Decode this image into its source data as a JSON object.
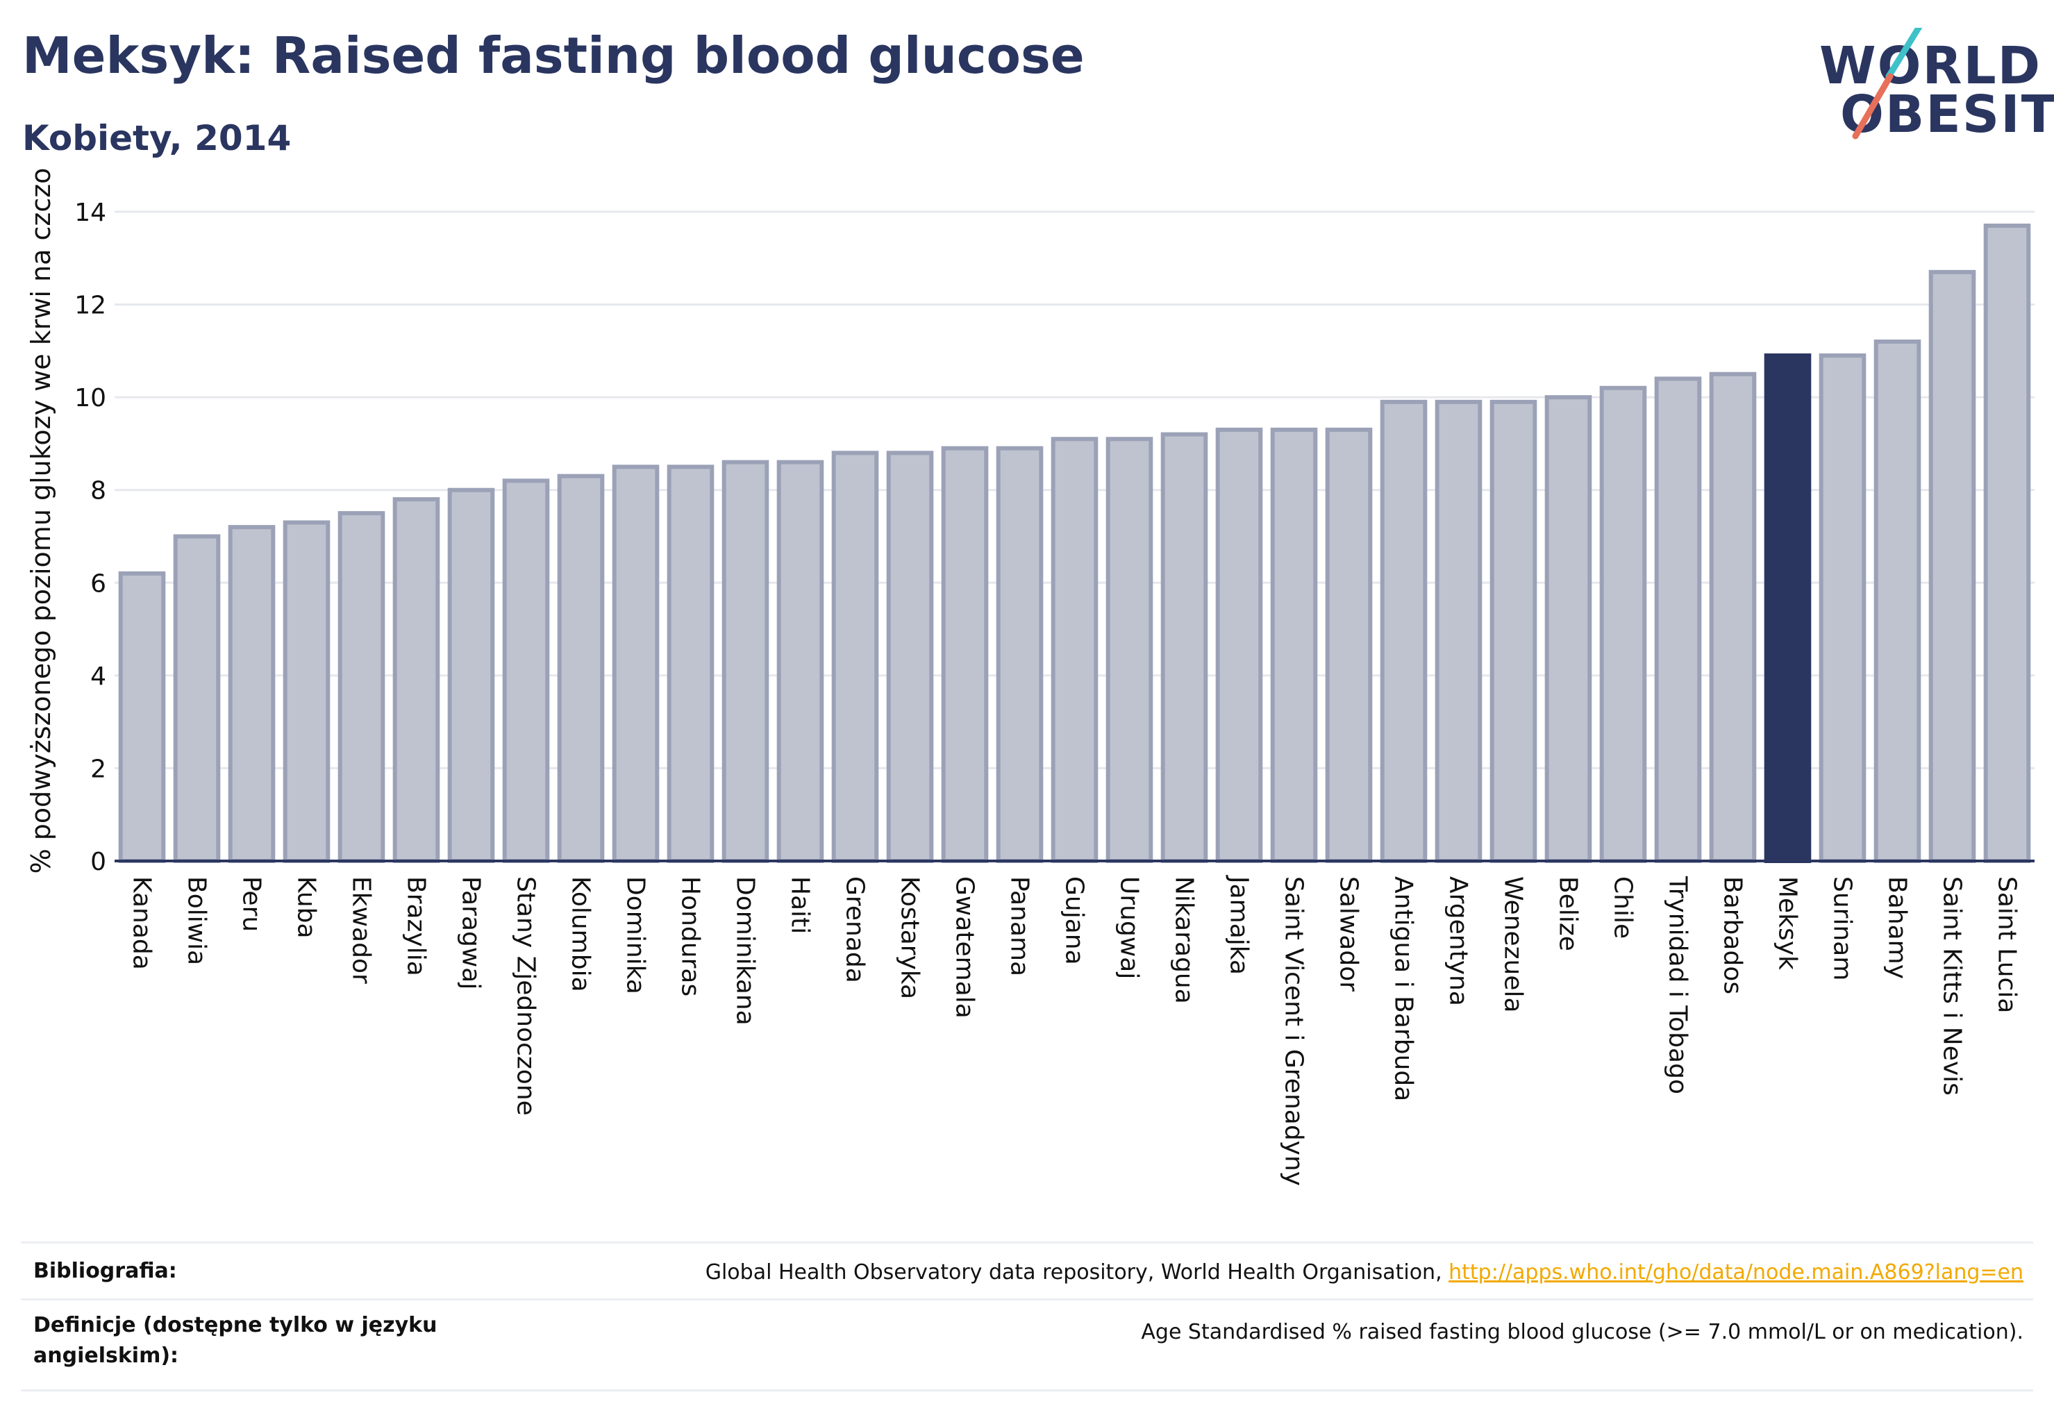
{
  "header": {
    "title": "Meksyk: Raised fasting blood glucose",
    "subtitle": "Kobiety, 2014"
  },
  "logo": {
    "line1": "WORLD",
    "line2": "OBESITY",
    "accent_colors": [
      "#3fc1c9",
      "#e8705a"
    ]
  },
  "colors": {
    "bar": "#bfc3cf",
    "bar_edge": "#9ba1b6",
    "highlight": "#2a3660",
    "grid": "#e6e8ee",
    "text": "#2a3660"
  },
  "chart_data": {
    "type": "bar",
    "ylabel": "% podwyższonego poziomu glukozy we krwi na czczo",
    "xlabel": "",
    "ylim": [
      0,
      14
    ],
    "yticks": [
      0,
      2,
      4,
      6,
      8,
      10,
      12,
      14
    ],
    "grid": true,
    "highlight_category": "Meksyk",
    "categories": [
      "Kanada",
      "Boliwia",
      "Peru",
      "Kuba",
      "Ekwador",
      "Brazylia",
      "Paragwaj",
      "Stany Zjednoczone",
      "Kolumbia",
      "Dominika",
      "Honduras",
      "Dominikana",
      "Haiti",
      "Grenada",
      "Kostaryka",
      "Gwatemala",
      "Panama",
      "Gujana",
      "Urugwaj",
      "Nikaragua",
      "Jamajka",
      "Saint Vicent i Grenadyny",
      "Salwador",
      "Antigua i Barbuda",
      "Argentyna",
      "Wenezuela",
      "Belize",
      "Chile",
      "Trynidad i Tobago",
      "Barbados",
      "Meksyk",
      "Surinam",
      "Bahamy",
      "Saint Kitts i Nevis",
      "Saint Lucia"
    ],
    "values": [
      6.2,
      7.0,
      7.2,
      7.3,
      7.5,
      7.8,
      8.0,
      8.2,
      8.3,
      8.5,
      8.5,
      8.6,
      8.6,
      8.8,
      8.8,
      8.9,
      8.9,
      9.1,
      9.1,
      9.2,
      9.3,
      9.3,
      9.3,
      9.9,
      9.9,
      9.9,
      10.0,
      10.2,
      10.4,
      10.5,
      10.9,
      10.9,
      11.2,
      12.7,
      13.7
    ]
  },
  "footer": {
    "bibliography_label": "Bibliografia:",
    "bibliography_text": "Global Health Observatory data repository, World Health Organisation, ",
    "bibliography_link": "http://apps.who.int/gho/data/node.main.A869?lang=en",
    "definitions_label": "Definicje (dostępne tylko w języku angielskim):",
    "definitions_text": "Age Standardised % raised fasting blood glucose (>= 7.0 mmol/L or on medication)."
  }
}
